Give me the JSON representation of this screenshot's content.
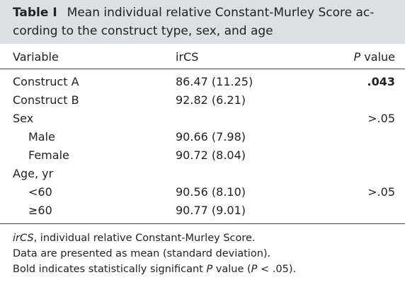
{
  "table": {
    "label": "Table I",
    "caption_line1": "Mean individual relative Constant-Murley Score ac-",
    "caption_line2": "cording to the construct type, sex, and age",
    "headers": {
      "variable": "Variable",
      "ircs": "irCS",
      "p_italic": "P",
      "p_rest": " value"
    },
    "rows": [
      {
        "variable": "Construct A",
        "ircs": "86.47 (11.25)",
        "p": ".043",
        "indent": false,
        "bold_p": true
      },
      {
        "variable": "Construct B",
        "ircs": "92.82 (6.21)",
        "p": "",
        "indent": false,
        "bold_p": false
      },
      {
        "variable": "Sex",
        "ircs": "",
        "p": ">.05",
        "indent": false,
        "bold_p": false
      },
      {
        "variable": "Male",
        "ircs": "90.66 (7.98)",
        "p": "",
        "indent": true,
        "bold_p": false
      },
      {
        "variable": "Female",
        "ircs": "90.72 (8.04)",
        "p": "",
        "indent": true,
        "bold_p": false
      },
      {
        "variable": "Age, yr",
        "ircs": "",
        "p": "",
        "indent": false,
        "bold_p": false
      },
      {
        "variable": "<60",
        "ircs": "90.56 (8.10)",
        "p": ">.05",
        "indent": true,
        "bold_p": false
      },
      {
        "variable": "≥60",
        "ircs": "90.77 (9.01)",
        "p": "",
        "indent": true,
        "bold_p": false
      }
    ],
    "footnotes": {
      "abbr_term": "irCS",
      "abbr_text": ", individual relative Constant-Murley Score.",
      "note2": "Data are presented as mean (standard deviation).",
      "note3_a": "Bold indicates statistically significant ",
      "note3_p": "P",
      "note3_b": " value (",
      "note3_p2": "P",
      "note3_c": " < .05)."
    }
  }
}
